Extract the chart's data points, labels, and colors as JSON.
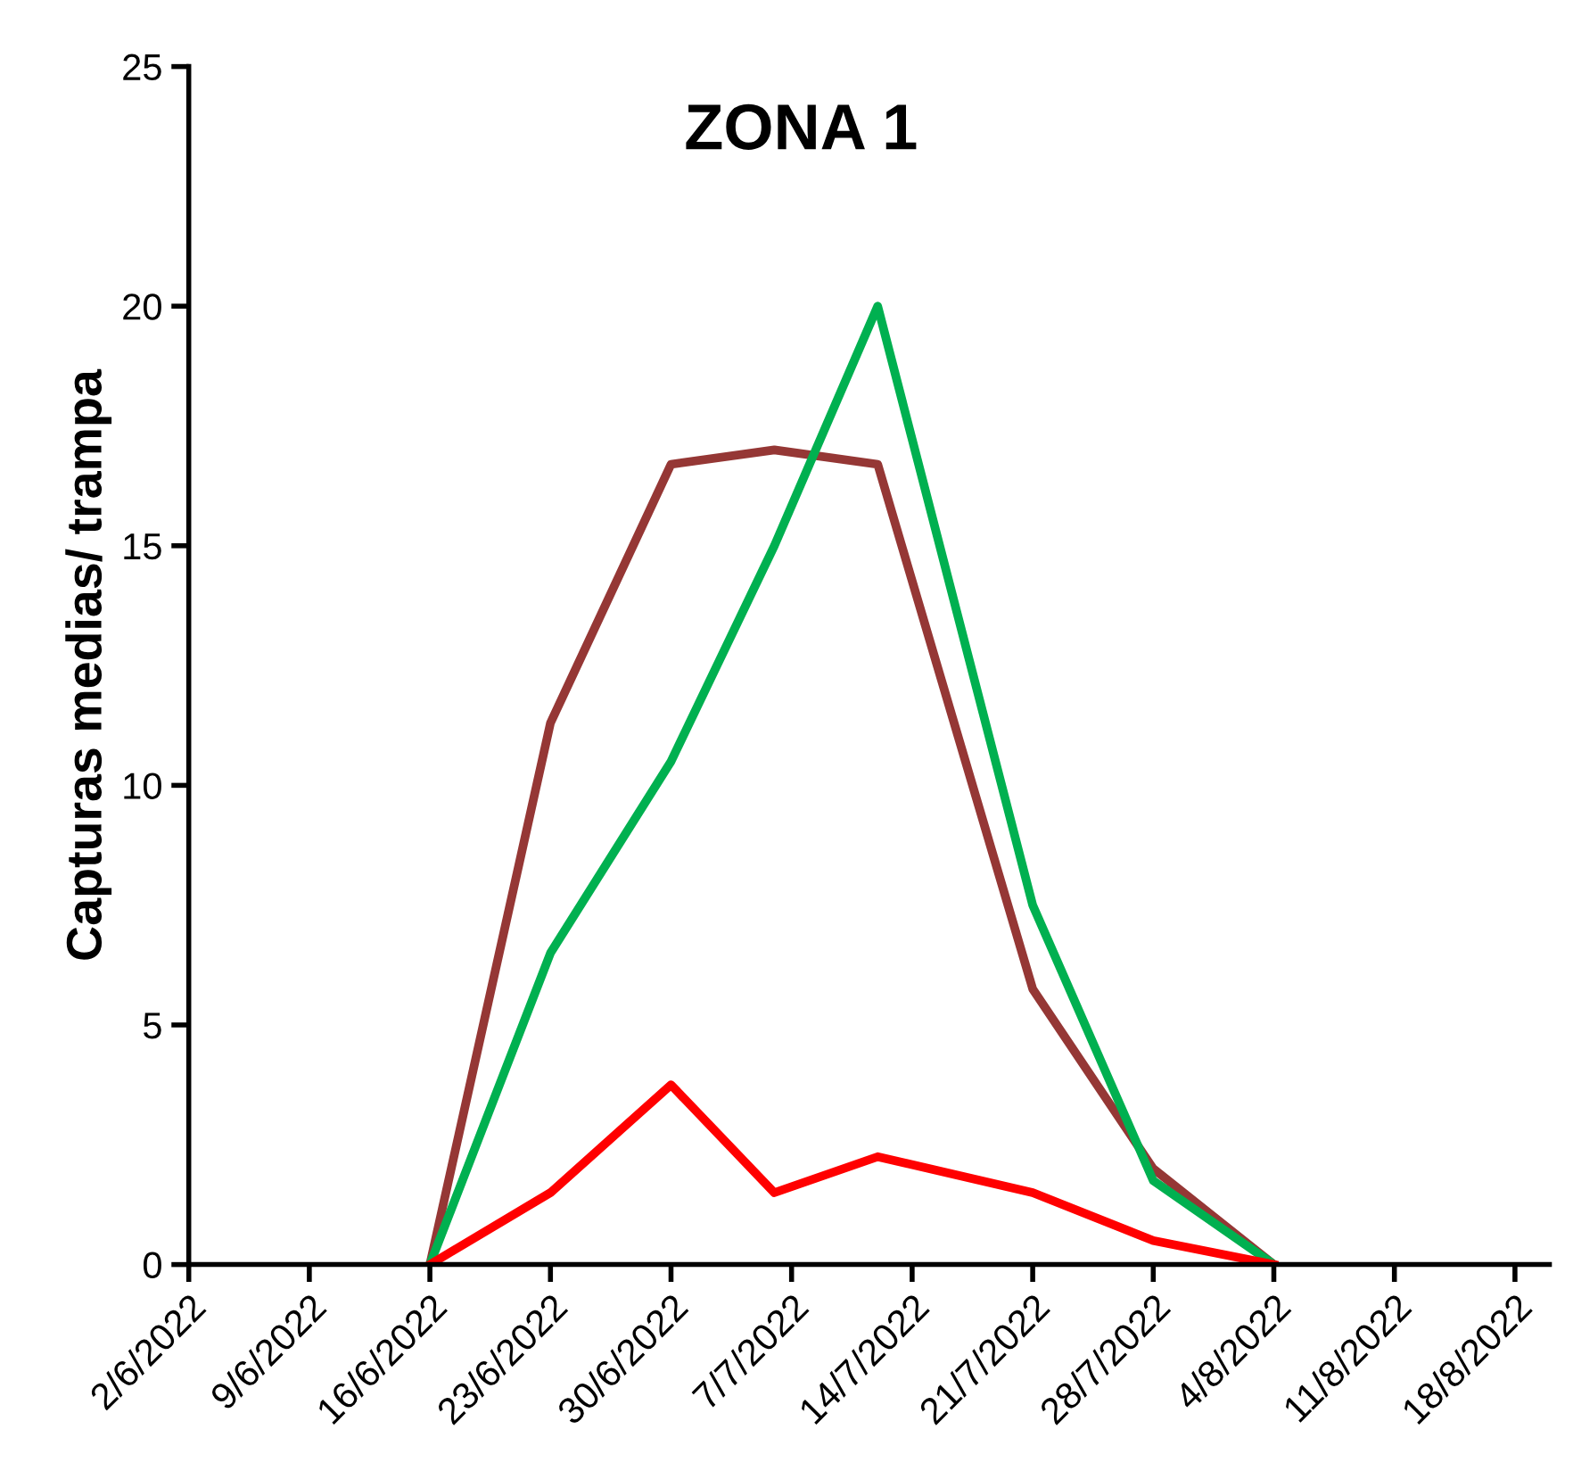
{
  "chart_data": {
    "type": "line",
    "title": "ZONA 1",
    "ylabel": "Capturas medias/ trampa",
    "x": [
      "2022-06-16",
      "2022-06-23",
      "2022-06-30",
      "2022-07-06",
      "2022-07-12",
      "2022-07-21",
      "2022-07-28",
      "2022-08-04"
    ],
    "series": [
      {
        "color": "#953735",
        "values": [
          0,
          11.3,
          16.7,
          17.0,
          16.7,
          5.75,
          2.0,
          0
        ]
      },
      {
        "color": "#00b050",
        "values": [
          0,
          6.5,
          10.5,
          15.0,
          20.0,
          7.5,
          1.75,
          0
        ]
      },
      {
        "color": "#ff0000",
        "values": [
          0,
          1.5,
          3.75,
          1.5,
          2.25,
          1.5,
          0.5,
          0
        ]
      }
    ],
    "xlim": [
      "2022-06-02",
      "2022-08-20"
    ],
    "xticks": [
      {
        "value": "2022-06-02",
        "label": "2/6/2022"
      },
      {
        "value": "2022-06-09",
        "label": "9/6/2022"
      },
      {
        "value": "2022-06-16",
        "label": "16/6/2022"
      },
      {
        "value": "2022-06-23",
        "label": "23/6/2022"
      },
      {
        "value": "2022-06-30",
        "label": "30/6/2022"
      },
      {
        "value": "2022-07-07",
        "label": "7/7/2022"
      },
      {
        "value": "2022-07-14",
        "label": "14/7/2022"
      },
      {
        "value": "2022-07-21",
        "label": "21/7/2022"
      },
      {
        "value": "2022-07-28",
        "label": "28/7/2022"
      },
      {
        "value": "2022-08-04",
        "label": "4/8/2022"
      },
      {
        "value": "2022-08-11",
        "label": "11/8/2022"
      },
      {
        "value": "2022-08-18",
        "label": "18/8/2022"
      }
    ],
    "ylim": [
      0,
      25
    ],
    "yticks": [
      0,
      5,
      10,
      15,
      20,
      25
    ],
    "grid": false,
    "legend": false,
    "marker": "none",
    "line_style": "solid"
  }
}
